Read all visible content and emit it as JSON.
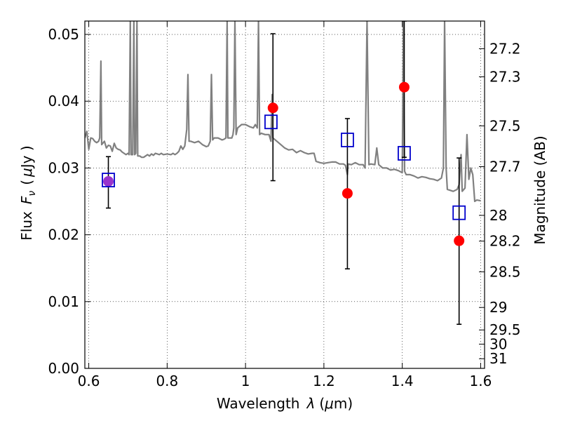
{
  "chart_data": {
    "type": "scatter",
    "xlabel": "Wavelength",
    "xlabel_symbol": "λ",
    "xlabel_unit_open": "(",
    "xlabel_unit_mu": "μ",
    "xlabel_unit_rest": "m)",
    "ylabel": "Flux",
    "ylabel_symbol": "F",
    "ylabel_subscript": "ν",
    "ylabel_unit_open": "(",
    "ylabel_unit_mu": "μ",
    "ylabel_unit_rest": "Jy )",
    "right_ylabel": "Magnitude (AB)",
    "xlim": [
      0.59,
      1.61
    ],
    "ylim": [
      0.0,
      0.052
    ],
    "grid": true,
    "x_ticks": [
      {
        "value": 0.6,
        "label": "0.6"
      },
      {
        "value": 0.8,
        "label": "0.8"
      },
      {
        "value": 1.0,
        "label": "1"
      },
      {
        "value": 1.2,
        "label": "1.2"
      },
      {
        "value": 1.4,
        "label": "1.4"
      },
      {
        "value": 1.6,
        "label": "1.6"
      }
    ],
    "y_ticks": [
      {
        "value": 0.0,
        "label": "0.00"
      },
      {
        "value": 0.01,
        "label": "0.01"
      },
      {
        "value": 0.02,
        "label": "0.02"
      },
      {
        "value": 0.03,
        "label": "0.03"
      },
      {
        "value": 0.04,
        "label": "0.04"
      },
      {
        "value": 0.05,
        "label": "0.05"
      }
    ],
    "right_ticks": [
      {
        "mag": 27.2,
        "label": "27.2"
      },
      {
        "mag": 27.3,
        "label": "27.3"
      },
      {
        "mag": 27.5,
        "label": "27.5"
      },
      {
        "mag": 27.7,
        "label": "27.7"
      },
      {
        "mag": 28.0,
        "label": "28"
      },
      {
        "mag": 28.2,
        "label": "28.2"
      },
      {
        "mag": 28.5,
        "label": "28.5"
      },
      {
        "mag": 29.0,
        "label": "29"
      },
      {
        "mag": 29.5,
        "label": "29.5"
      },
      {
        "mag": 30.0,
        "label": "30"
      },
      {
        "mag": 31.0,
        "label": "31"
      }
    ],
    "colors": {
      "spectrum": "#808080",
      "observed": "#ff0000",
      "model": "#0000cc",
      "errorbar": "#000000",
      "overlap": "#9933cc"
    },
    "series": [
      {
        "kind": "spectrum",
        "points": [
          [
            0.59,
            0.0345
          ],
          [
            0.595,
            0.0355
          ],
          [
            0.6,
            0.0328
          ],
          [
            0.605,
            0.0345
          ],
          [
            0.61,
            0.0344
          ],
          [
            0.615,
            0.034
          ],
          [
            0.62,
            0.0338
          ],
          [
            0.625,
            0.034
          ],
          [
            0.628,
            0.0345
          ],
          [
            0.631,
            0.046
          ],
          [
            0.633,
            0.0335
          ],
          [
            0.64,
            0.034
          ],
          [
            0.645,
            0.033
          ],
          [
            0.65,
            0.0334
          ],
          [
            0.655,
            0.0333
          ],
          [
            0.66,
            0.0325
          ],
          [
            0.665,
            0.0337
          ],
          [
            0.67,
            0.033
          ],
          [
            0.675,
            0.0328
          ],
          [
            0.68,
            0.0327
          ],
          [
            0.685,
            0.0324
          ],
          [
            0.69,
            0.0322
          ],
          [
            0.695,
            0.032
          ],
          [
            0.7,
            0.0322
          ],
          [
            0.703,
            0.032
          ],
          [
            0.706,
            0.052
          ],
          [
            0.708,
            0.032
          ],
          [
            0.712,
            0.032
          ],
          [
            0.715,
            0.052
          ],
          [
            0.717,
            0.032
          ],
          [
            0.72,
            0.0322
          ],
          [
            0.723,
            0.052
          ],
          [
            0.725,
            0.0318
          ],
          [
            0.73,
            0.0318
          ],
          [
            0.735,
            0.0316
          ],
          [
            0.74,
            0.0316
          ],
          [
            0.745,
            0.0318
          ],
          [
            0.75,
            0.032
          ],
          [
            0.755,
            0.0318
          ],
          [
            0.76,
            0.0321
          ],
          [
            0.765,
            0.0319
          ],
          [
            0.77,
            0.0322
          ],
          [
            0.775,
            0.0321
          ],
          [
            0.78,
            0.032
          ],
          [
            0.785,
            0.0322
          ],
          [
            0.79,
            0.032
          ],
          [
            0.8,
            0.0321
          ],
          [
            0.81,
            0.032
          ],
          [
            0.815,
            0.0322
          ],
          [
            0.82,
            0.032
          ],
          [
            0.825,
            0.0322
          ],
          [
            0.83,
            0.0325
          ],
          [
            0.835,
            0.0333
          ],
          [
            0.84,
            0.0328
          ],
          [
            0.845,
            0.0333
          ],
          [
            0.85,
            0.0358
          ],
          [
            0.853,
            0.044
          ],
          [
            0.856,
            0.034
          ],
          [
            0.86,
            0.034
          ],
          [
            0.87,
            0.0338
          ],
          [
            0.88,
            0.034
          ],
          [
            0.89,
            0.0335
          ],
          [
            0.9,
            0.0332
          ],
          [
            0.905,
            0.0333
          ],
          [
            0.91,
            0.034
          ],
          [
            0.913,
            0.044
          ],
          [
            0.916,
            0.0342
          ],
          [
            0.92,
            0.0345
          ],
          [
            0.93,
            0.0345
          ],
          [
            0.94,
            0.0342
          ],
          [
            0.945,
            0.0343
          ],
          [
            0.95,
            0.0345
          ],
          [
            0.953,
            0.052
          ],
          [
            0.955,
            0.0345
          ],
          [
            0.96,
            0.0345
          ],
          [
            0.965,
            0.0345
          ],
          [
            0.968,
            0.035
          ],
          [
            0.97,
            0.036
          ],
          [
            0.973,
            0.052
          ],
          [
            0.976,
            0.035
          ],
          [
            0.98,
            0.036
          ],
          [
            0.99,
            0.0365
          ],
          [
            1.0,
            0.0365
          ],
          [
            1.01,
            0.0362
          ],
          [
            1.02,
            0.036
          ],
          [
            1.025,
            0.0365
          ],
          [
            1.03,
            0.036
          ],
          [
            1.033,
            0.052
          ],
          [
            1.036,
            0.035
          ],
          [
            1.04,
            0.0352
          ],
          [
            1.05,
            0.035
          ],
          [
            1.06,
            0.035
          ],
          [
            1.065,
            0.034
          ],
          [
            1.068,
            0.041
          ],
          [
            1.07,
            0.0345
          ],
          [
            1.08,
            0.034
          ],
          [
            1.09,
            0.0335
          ],
          [
            1.1,
            0.033
          ],
          [
            1.11,
            0.0327
          ],
          [
            1.12,
            0.0328
          ],
          [
            1.13,
            0.0323
          ],
          [
            1.14,
            0.0326
          ],
          [
            1.15,
            0.0323
          ],
          [
            1.16,
            0.0321
          ],
          [
            1.17,
            0.0322
          ],
          [
            1.175,
            0.0322
          ],
          [
            1.18,
            0.031
          ],
          [
            1.19,
            0.0308
          ],
          [
            1.2,
            0.0307
          ],
          [
            1.21,
            0.0308
          ],
          [
            1.22,
            0.0309
          ],
          [
            1.23,
            0.0309
          ],
          [
            1.24,
            0.0306
          ],
          [
            1.25,
            0.0306
          ],
          [
            1.255,
            0.0304
          ],
          [
            1.26,
            0.029
          ],
          [
            1.262,
            0.0306
          ],
          [
            1.27,
            0.0305
          ],
          [
            1.28,
            0.0308
          ],
          [
            1.29,
            0.0305
          ],
          [
            1.3,
            0.0305
          ],
          [
            1.305,
            0.03
          ],
          [
            1.31,
            0.052
          ],
          [
            1.315,
            0.0305
          ],
          [
            1.32,
            0.0306
          ],
          [
            1.33,
            0.0305
          ],
          [
            1.335,
            0.033
          ],
          [
            1.34,
            0.0305
          ],
          [
            1.35,
            0.03
          ],
          [
            1.36,
            0.03
          ],
          [
            1.37,
            0.0297
          ],
          [
            1.38,
            0.0298
          ],
          [
            1.39,
            0.0296
          ],
          [
            1.4,
            0.0293
          ],
          [
            1.403,
            0.052
          ],
          [
            1.406,
            0.0295
          ],
          [
            1.41,
            0.029
          ],
          [
            1.42,
            0.029
          ],
          [
            1.43,
            0.0288
          ],
          [
            1.44,
            0.0285
          ],
          [
            1.45,
            0.0287
          ],
          [
            1.46,
            0.0286
          ],
          [
            1.47,
            0.0284
          ],
          [
            1.48,
            0.0283
          ],
          [
            1.49,
            0.0281
          ],
          [
            1.5,
            0.0285
          ],
          [
            1.505,
            0.03
          ],
          [
            1.508,
            0.052
          ],
          [
            1.512,
            0.03
          ],
          [
            1.515,
            0.0268
          ],
          [
            1.52,
            0.0267
          ],
          [
            1.53,
            0.0265
          ],
          [
            1.54,
            0.0268
          ],
          [
            1.545,
            0.0275
          ],
          [
            1.55,
            0.032
          ],
          [
            1.553,
            0.0265
          ],
          [
            1.56,
            0.027
          ],
          [
            1.565,
            0.035
          ],
          [
            1.57,
            0.0283
          ],
          [
            1.575,
            0.03
          ],
          [
            1.58,
            0.029
          ],
          [
            1.585,
            0.025
          ],
          [
            1.59,
            0.0252
          ],
          [
            1.6,
            0.0251
          ]
        ]
      },
      {
        "kind": "observed",
        "points": [
          {
            "x": 0.65,
            "y": 0.028,
            "yerr_low": 0.024,
            "yerr_high": 0.0317
          },
          {
            "x": 1.07,
            "y": 0.039,
            "yerr_low": 0.0281,
            "yerr_high": 0.0501
          },
          {
            "x": 1.26,
            "y": 0.0262,
            "yerr_low": 0.0149,
            "yerr_high": 0.0374
          },
          {
            "x": 1.405,
            "y": 0.0421,
            "yerr_low": 0.0316,
            "yerr_high": 0.052
          },
          {
            "x": 1.545,
            "y": 0.0191,
            "yerr_low": 0.0066,
            "yerr_high": 0.0315
          }
        ]
      },
      {
        "kind": "model",
        "points": [
          {
            "x": 0.65,
            "y": 0.0282
          },
          {
            "x": 1.065,
            "y": 0.0369
          },
          {
            "x": 1.26,
            "y": 0.0342
          },
          {
            "x": 1.405,
            "y": 0.0322
          },
          {
            "x": 1.545,
            "y": 0.0233
          }
        ]
      }
    ]
  }
}
